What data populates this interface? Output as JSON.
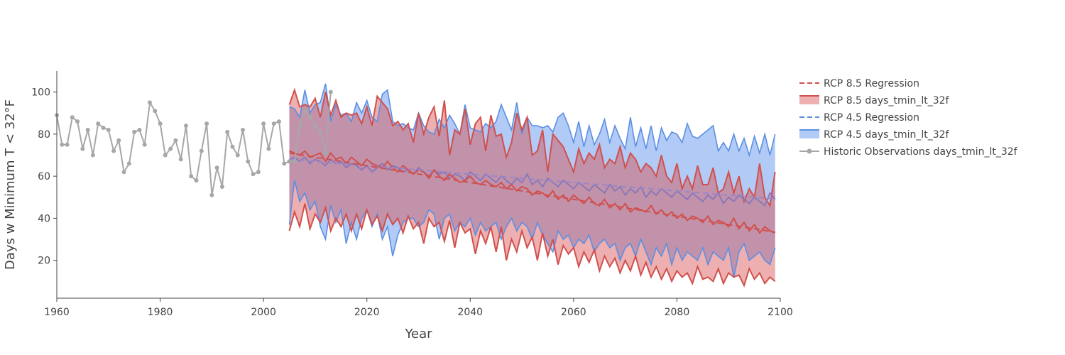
{
  "chart_data": {
    "type": "line",
    "xlabel": "Year",
    "ylabel": "Days w Minimum T < 32°F",
    "xlim": [
      1960,
      2100
    ],
    "ylim": [
      2,
      110
    ],
    "x_ticks": [
      1960,
      1980,
      2000,
      2020,
      2040,
      2060,
      2080,
      2100
    ],
    "y_ticks": [
      20,
      40,
      60,
      80,
      100
    ],
    "grid": false,
    "legend_position": "top-right",
    "legend": [
      "RCP 8.5 Regression",
      "RCP 8.5  days_tmin_lt_32f",
      "RCP 4.5 Regression",
      "RCP 4.5  days_tmin_lt_32f",
      "Historic Observations  days_tmin_lt_32f"
    ],
    "colors": {
      "rcp85": "#d0504d",
      "rcp85_fill": "rgba(214,77,77,0.45)",
      "rcp45": "#5b8fe4",
      "rcp45_fill": "rgba(100,149,237,0.5)",
      "historic": "#a7a7a7",
      "axis": "#444444"
    },
    "historic": {
      "x": [
        1960,
        1961,
        1962,
        1963,
        1964,
        1965,
        1966,
        1967,
        1968,
        1969,
        1970,
        1971,
        1972,
        1973,
        1974,
        1975,
        1976,
        1977,
        1978,
        1979,
        1980,
        1981,
        1982,
        1983,
        1984,
        1985,
        1986,
        1987,
        1988,
        1989,
        1990,
        1991,
        1992,
        1993,
        1994,
        1995,
        1996,
        1997,
        1998,
        1999,
        2000,
        2001,
        2002,
        2003,
        2004,
        2005,
        2006,
        2007,
        2008,
        2009,
        2010,
        2011,
        2012,
        2013
      ],
      "y": [
        89,
        75,
        75,
        88,
        86,
        73,
        82,
        70,
        85,
        83,
        82,
        72,
        77,
        62,
        66,
        81,
        82,
        75,
        95,
        91,
        85,
        70,
        73,
        77,
        68,
        84,
        60,
        58,
        72,
        85,
        51,
        64,
        55,
        81,
        74,
        70,
        82,
        67,
        61,
        62,
        85,
        73,
        85,
        86,
        66,
        67,
        67,
        84,
        91,
        88,
        84,
        81,
        71,
        100
      ]
    },
    "rcp85": {
      "x_start": 2005,
      "x_end": 2099,
      "upper": [
        94,
        101,
        93,
        94,
        93,
        97,
        88,
        100,
        89,
        96,
        88,
        90,
        89,
        90,
        85,
        93,
        84,
        98,
        95,
        92,
        84,
        86,
        82,
        85,
        76,
        90,
        80,
        88,
        93,
        79,
        96,
        70,
        82,
        80,
        92,
        75,
        85,
        88,
        72,
        89,
        79,
        80,
        69,
        76,
        90,
        82,
        88,
        70,
        72,
        82,
        62,
        80,
        77,
        74,
        68,
        62,
        73,
        66,
        71,
        68,
        75,
        64,
        68,
        66,
        74,
        64,
        71,
        68,
        62,
        66,
        64,
        60,
        70,
        60,
        57,
        66,
        54,
        60,
        54,
        65,
        56,
        56,
        64,
        52,
        54,
        62,
        52,
        60,
        48,
        54,
        50,
        66,
        50,
        46,
        62,
        44,
        72,
        54,
        52
      ],
      "lower": [
        34,
        43,
        36,
        47,
        35,
        42,
        38,
        45,
        34,
        40,
        36,
        42,
        34,
        42,
        35,
        44,
        37,
        41,
        34,
        42,
        37,
        40,
        33,
        41,
        35,
        38,
        28,
        40,
        36,
        38,
        29,
        39,
        26,
        38,
        33,
        35,
        23,
        34,
        28,
        36,
        24,
        36,
        20,
        30,
        24,
        34,
        26,
        31,
        20,
        33,
        22,
        30,
        18,
        27,
        23,
        26,
        17,
        24,
        19,
        25,
        15,
        22,
        17,
        21,
        14,
        20,
        15,
        22,
        13,
        19,
        12,
        17,
        11,
        16,
        10,
        15,
        12,
        14,
        9,
        17,
        11,
        12,
        10,
        16,
        9,
        14,
        12,
        13,
        8,
        16,
        11,
        14,
        9,
        12,
        10,
        13,
        7,
        15,
        8
      ],
      "mean": [
        72,
        71,
        70,
        72,
        69,
        70,
        71,
        67,
        71,
        68,
        69,
        66,
        69,
        67,
        65,
        68,
        66,
        65,
        64,
        67,
        64,
        62,
        65,
        63,
        61,
        63,
        62,
        59,
        63,
        60,
        58,
        61,
        59,
        57,
        58,
        60,
        57,
        56,
        58,
        56,
        55,
        57,
        54,
        56,
        53,
        55,
        54,
        51,
        53,
        52,
        50,
        53,
        49,
        51,
        48,
        51,
        49,
        47,
        50,
        47,
        46,
        49,
        45,
        47,
        44,
        47,
        43,
        45,
        44,
        43,
        46,
        42,
        44,
        41,
        43,
        40,
        42,
        39,
        41,
        40,
        38,
        41,
        37,
        39,
        38,
        36,
        40,
        35,
        38,
        34,
        37,
        33,
        36,
        34,
        33,
        35,
        32,
        34,
        33
      ],
      "regression": [
        71.0,
        70.6,
        70.2,
        69.8,
        69.4,
        69.0,
        68.6,
        68.2,
        67.8,
        67.4,
        67.0,
        66.6,
        66.2,
        65.8,
        65.4,
        65.0,
        64.6,
        64.2,
        63.8,
        63.4,
        63.0,
        62.6,
        62.2,
        61.8,
        61.4,
        61.0,
        60.6,
        60.2,
        59.8,
        59.4,
        59.0,
        58.6,
        58.2,
        57.8,
        57.4,
        57.0,
        56.6,
        56.2,
        55.8,
        55.4,
        55.0,
        54.6,
        54.2,
        53.8,
        53.4,
        53.0,
        52.6,
        52.2,
        51.8,
        51.4,
        51.0,
        50.6,
        50.2,
        49.8,
        49.4,
        49.0,
        48.6,
        48.2,
        47.8,
        47.4,
        47.0,
        46.6,
        46.2,
        45.8,
        45.4,
        45.0,
        44.6,
        44.2,
        43.8,
        43.4,
        43.0,
        42.6,
        42.2,
        41.8,
        41.4,
        41.0,
        40.6,
        40.2,
        39.8,
        39.4,
        39.0,
        38.6,
        38.2,
        37.8,
        37.4,
        37.0,
        36.6,
        36.2,
        35.8,
        35.4,
        35.0,
        34.6,
        34.2,
        33.8,
        33.4,
        33.0,
        32.6,
        32.2,
        31.8
      ]
    },
    "rcp45": {
      "x_start": 2005,
      "x_end": 2099,
      "upper": [
        93,
        92,
        88,
        101,
        90,
        94,
        95,
        104,
        86,
        94,
        89,
        90,
        86,
        95,
        90,
        96,
        88,
        86,
        99,
        101,
        86,
        84,
        85,
        83,
        82,
        90,
        84,
        81,
        80,
        87,
        83,
        89,
        85,
        80,
        94,
        83,
        82,
        81,
        85,
        83,
        86,
        94,
        88,
        82,
        95,
        80,
        88,
        84,
        84,
        83,
        84,
        81,
        88,
        90,
        84,
        76,
        86,
        74,
        84,
        75,
        80,
        87,
        76,
        84,
        78,
        73,
        88,
        74,
        83,
        73,
        84,
        72,
        83,
        77,
        81,
        80,
        76,
        85,
        79,
        78,
        80,
        82,
        84,
        72,
        76,
        72,
        80,
        72,
        78,
        70,
        79,
        71,
        80,
        70,
        80,
        74,
        79,
        72,
        80
      ],
      "lower": [
        37,
        58,
        48,
        52,
        44,
        48,
        36,
        30,
        46,
        38,
        44,
        28,
        38,
        30,
        40,
        44,
        36,
        42,
        30,
        36,
        22,
        32,
        38,
        40,
        40,
        36,
        38,
        44,
        42,
        30,
        40,
        42,
        34,
        38,
        36,
        40,
        32,
        38,
        34,
        36,
        38,
        30,
        36,
        40,
        34,
        38,
        36,
        30,
        38,
        32,
        28,
        24,
        34,
        30,
        32,
        26,
        30,
        28,
        32,
        24,
        28,
        30,
        26,
        28,
        20,
        26,
        28,
        22,
        30,
        24,
        18,
        26,
        22,
        28,
        18,
        26,
        20,
        24,
        22,
        20,
        26,
        18,
        24,
        22,
        20,
        26,
        12,
        24,
        28,
        20,
        22,
        24,
        20,
        18,
        26,
        22,
        18,
        28,
        22
      ],
      "mean": [
        68,
        69,
        67,
        69,
        66,
        68,
        67,
        65,
        68,
        66,
        67,
        64,
        66,
        65,
        63,
        65,
        62,
        64,
        66,
        63,
        65,
        64,
        62,
        63,
        61,
        64,
        62,
        60,
        63,
        61,
        62,
        59,
        61,
        60,
        58,
        62,
        60,
        58,
        61,
        59,
        57,
        60,
        58,
        56,
        59,
        57,
        61,
        56,
        58,
        55,
        59,
        57,
        55,
        58,
        56,
        54,
        57,
        55,
        53,
        56,
        54,
        52,
        56,
        53,
        55,
        51,
        54,
        52,
        55,
        50,
        53,
        51,
        54,
        52,
        50,
        53,
        51,
        49,
        52,
        50,
        48,
        51,
        49,
        52,
        47,
        50,
        48,
        51,
        49,
        47,
        50,
        48,
        46,
        52,
        49,
        47,
        50,
        48,
        47
      ],
      "regression": [
        68.0,
        67.8,
        67.6,
        67.4,
        67.2,
        67.0,
        66.8,
        66.6,
        66.4,
        66.2,
        66.0,
        65.8,
        65.6,
        65.4,
        65.2,
        65.0,
        64.8,
        64.6,
        64.4,
        64.2,
        64.0,
        63.8,
        63.6,
        63.4,
        63.2,
        63.0,
        62.8,
        62.6,
        62.4,
        62.2,
        62.0,
        61.8,
        61.6,
        61.4,
        61.2,
        61.0,
        60.8,
        60.6,
        60.4,
        60.2,
        60.0,
        59.8,
        59.6,
        59.4,
        59.2,
        59.0,
        58.8,
        58.6,
        58.4,
        58.2,
        58.0,
        57.8,
        57.6,
        57.4,
        57.2,
        57.0,
        56.8,
        56.6,
        56.4,
        56.2,
        56.0,
        55.8,
        55.6,
        55.4,
        55.2,
        55.0,
        54.8,
        54.6,
        54.4,
        54.2,
        54.0,
        53.8,
        53.6,
        53.4,
        53.2,
        53.0,
        52.8,
        52.6,
        52.4,
        52.2,
        52.0,
        51.8,
        51.6,
        51.4,
        51.2,
        51.0,
        50.8,
        50.6,
        50.4,
        50.2,
        50.0,
        49.8,
        49.6,
        49.4,
        49.2,
        49.0,
        48.8,
        48.6,
        48.4
      ]
    }
  }
}
